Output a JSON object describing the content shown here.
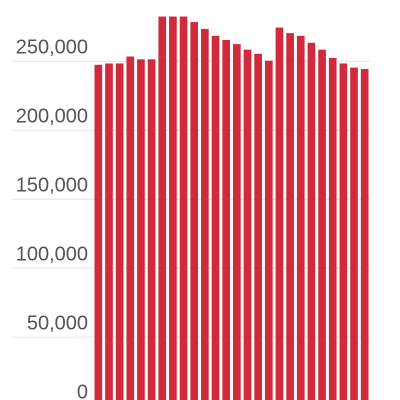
{
  "chart_data": {
    "type": "bar",
    "categories": [
      null,
      null,
      null,
      null,
      null,
      null,
      null,
      null,
      null,
      null,
      null,
      null,
      null,
      null,
      null,
      null,
      null,
      null,
      null,
      null,
      null,
      null,
      null,
      null,
      null,
      null
    ],
    "values": [
      238000,
      239000,
      239000,
      244000,
      242000,
      242000,
      273000,
      273000,
      273000,
      269000,
      264000,
      259000,
      256000,
      253000,
      249000,
      246000,
      241000,
      265000,
      261000,
      259000,
      254000,
      249000,
      243000,
      239000,
      236000,
      235000
    ],
    "color": "#d12a3c",
    "ylim": [
      -5000,
      285000
    ],
    "yticks": [
      {
        "value": 0,
        "label": "0"
      },
      {
        "value": 50000,
        "label": "50,000"
      },
      {
        "value": 100000,
        "label": "100,000"
      },
      {
        "value": 150000,
        "label": "150,000"
      },
      {
        "value": 200000,
        "label": "200,000"
      },
      {
        "value": 250000,
        "label": "250,000"
      }
    ],
    "grid": true
  }
}
